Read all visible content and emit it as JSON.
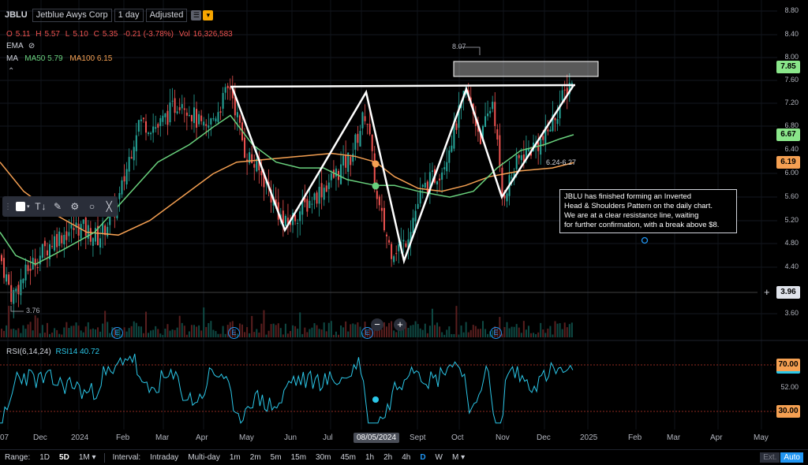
{
  "header": {
    "symbol": "JBLU",
    "company": "Jetblue Awys Corp",
    "interval": "1 day",
    "adjustment": "Adjusted"
  },
  "ohlc": {
    "o_label": "O",
    "o": "5.11",
    "h_label": "H",
    "h": "5.57",
    "l_label": "L",
    "l": "5.10",
    "c_label": "C",
    "c": "5.35",
    "change": "-0.21 (-3.78%)",
    "vol_label": "Vol",
    "vol": "16,326,583"
  },
  "indicators": {
    "ema_label": "EMA",
    "ma_label": "MA",
    "ma50_label": "MA50",
    "ma50": "5.79",
    "ma100_label": "MA100",
    "ma100": "6.15"
  },
  "price_axis": [
    "8.80",
    "8.40",
    "8.00",
    "7.60",
    "7.20",
    "6.80",
    "6.40",
    "6.00",
    "5.60",
    "5.20",
    "4.80",
    "4.40",
    "3.60"
  ],
  "badges": {
    "last": "7.85",
    "ma50": "6.67",
    "ma100": "6.19",
    "cursor": "3.96",
    "rsi_high": "70.00",
    "rsi_low": "30.00",
    "rsi_mid": "52.00"
  },
  "annotations": {
    "high": "8.07",
    "low": "3.76",
    "range": "6.24-6.27",
    "note_lines": [
      "JBLU has finished forming an Inverted",
      "Head & Shoulders Pattern on the daily chart.",
      "We are at a clear resistance line, waiting",
      "for further confirmation, with a break above $8."
    ]
  },
  "rsi": {
    "label": "RSI(6,14,24)",
    "rsi14_label": "RSI14",
    "rsi14": "40.72"
  },
  "earnings_marker": "E",
  "x_axis": [
    {
      "label": "07"
    },
    {
      "label": "Dec"
    },
    {
      "label": "2024"
    },
    {
      "label": "Feb"
    },
    {
      "label": "Mar"
    },
    {
      "label": "Apr"
    },
    {
      "label": "May"
    },
    {
      "label": "Jun"
    },
    {
      "label": "Jul"
    },
    {
      "label": "08/05/2024"
    },
    {
      "label": "Sept"
    },
    {
      "label": "Oct"
    },
    {
      "label": "Nov"
    },
    {
      "label": "Dec"
    },
    {
      "label": "2025"
    },
    {
      "label": "Feb"
    },
    {
      "label": "Mar"
    },
    {
      "label": "Apr"
    },
    {
      "label": "May"
    }
  ],
  "bottom_bar": {
    "range_label": "Range:",
    "ranges": [
      "1D",
      "5D",
      "1M"
    ],
    "interval_label": "Interval:",
    "intervals": [
      "Intraday",
      "Multi-day",
      "1m",
      "2m",
      "5m",
      "15m",
      "30m",
      "45m",
      "1h",
      "2h",
      "4h",
      "D",
      "W",
      "M"
    ],
    "ext": "Ext.",
    "auto": "Auto"
  },
  "colors": {
    "up": "#26a69a",
    "down": "#ef5350",
    "ma50": "#69d17d",
    "ma100": "#f5a052",
    "rsi": "#2bc7e8",
    "badge_green": "#8ae68a",
    "badge_orange": "#f5a052"
  }
}
